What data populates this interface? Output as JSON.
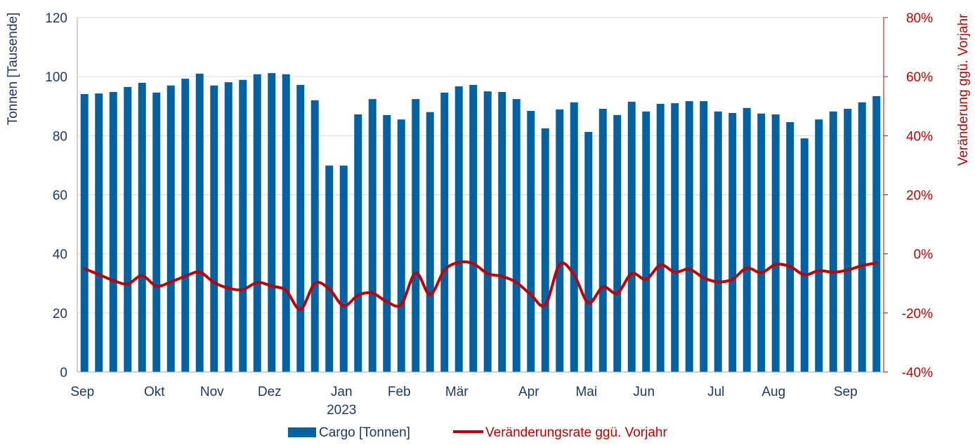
{
  "chart_data": {
    "type": "bar+line",
    "title": "",
    "ylabel_left": "Tonnen [Tausende]",
    "ylabel_right": "Veränderung ggü. Vorjahr",
    "ylim_left": [
      0,
      120
    ],
    "yticks_left": [
      0,
      20,
      40,
      60,
      80,
      100,
      120
    ],
    "ylim_right": [
      -40,
      80
    ],
    "yticks_right": [
      "-40%",
      "-20%",
      "0%",
      "20%",
      "40%",
      "60%",
      "80%"
    ],
    "yticks_right_values": [
      -40,
      -20,
      0,
      20,
      40,
      60,
      80
    ],
    "grid": true,
    "legend_position": "bottom",
    "x_tick_labels": [
      {
        "index": 0,
        "label": "Sep"
      },
      {
        "index": 5,
        "label": "Okt"
      },
      {
        "index": 9,
        "label": "Nov"
      },
      {
        "index": 13,
        "label": "Dez"
      },
      {
        "index": 18,
        "label": "Jan",
        "sublabel": "2023"
      },
      {
        "index": 22,
        "label": "Feb"
      },
      {
        "index": 26,
        "label": "Mär"
      },
      {
        "index": 31,
        "label": "Apr"
      },
      {
        "index": 35,
        "label": "Mai"
      },
      {
        "index": 39,
        "label": "Jun"
      },
      {
        "index": 44,
        "label": "Jul"
      },
      {
        "index": 48,
        "label": "Aug"
      },
      {
        "index": 53,
        "label": "Sep"
      }
    ],
    "series": [
      {
        "name": "Cargo [Tonnen]",
        "type": "bar",
        "axis": "left",
        "color": "#0062a3",
        "values": [
          94.1,
          94.3,
          94.8,
          96.5,
          97.9,
          94.6,
          97.0,
          99.3,
          101.0,
          97.0,
          98.1,
          98.9,
          100.8,
          101.2,
          100.8,
          97.2,
          92.0,
          69.9,
          69.9,
          87.2,
          92.4,
          87.0,
          85.5,
          92.4,
          88.0,
          94.6,
          96.7,
          97.2,
          95.0,
          94.8,
          92.4,
          88.4,
          82.5,
          88.9,
          91.3,
          81.3,
          89.1,
          87.0,
          91.5,
          88.2,
          90.8,
          91.0,
          91.7,
          91.7,
          88.2,
          87.7,
          89.4,
          87.5,
          87.2,
          84.6,
          79.1,
          85.5,
          88.2,
          89.1,
          91.3,
          93.4
        ]
      },
      {
        "name": "Veränderungsrate ggü. Vorjahr",
        "type": "line",
        "axis": "right",
        "color": "#c00000",
        "values": [
          -5.0,
          -7.0,
          -9.0,
          -10.2,
          -7.4,
          -10.9,
          -9.5,
          -7.6,
          -6.2,
          -9.7,
          -11.6,
          -12.1,
          -9.7,
          -10.9,
          -12.4,
          -18.8,
          -10.0,
          -11.9,
          -17.6,
          -14.0,
          -13.3,
          -16.2,
          -17.1,
          -6.4,
          -13.8,
          -5.5,
          -2.9,
          -3.3,
          -6.7,
          -7.6,
          -9.7,
          -13.8,
          -17.3,
          -3.6,
          -7.1,
          -16.6,
          -11.2,
          -13.3,
          -6.7,
          -8.6,
          -3.8,
          -6.2,
          -5.2,
          -8.1,
          -9.5,
          -8.6,
          -4.8,
          -6.4,
          -3.6,
          -4.3,
          -7.1,
          -5.7,
          -6.2,
          -5.5,
          -4.0,
          -3.1
        ]
      }
    ]
  }
}
